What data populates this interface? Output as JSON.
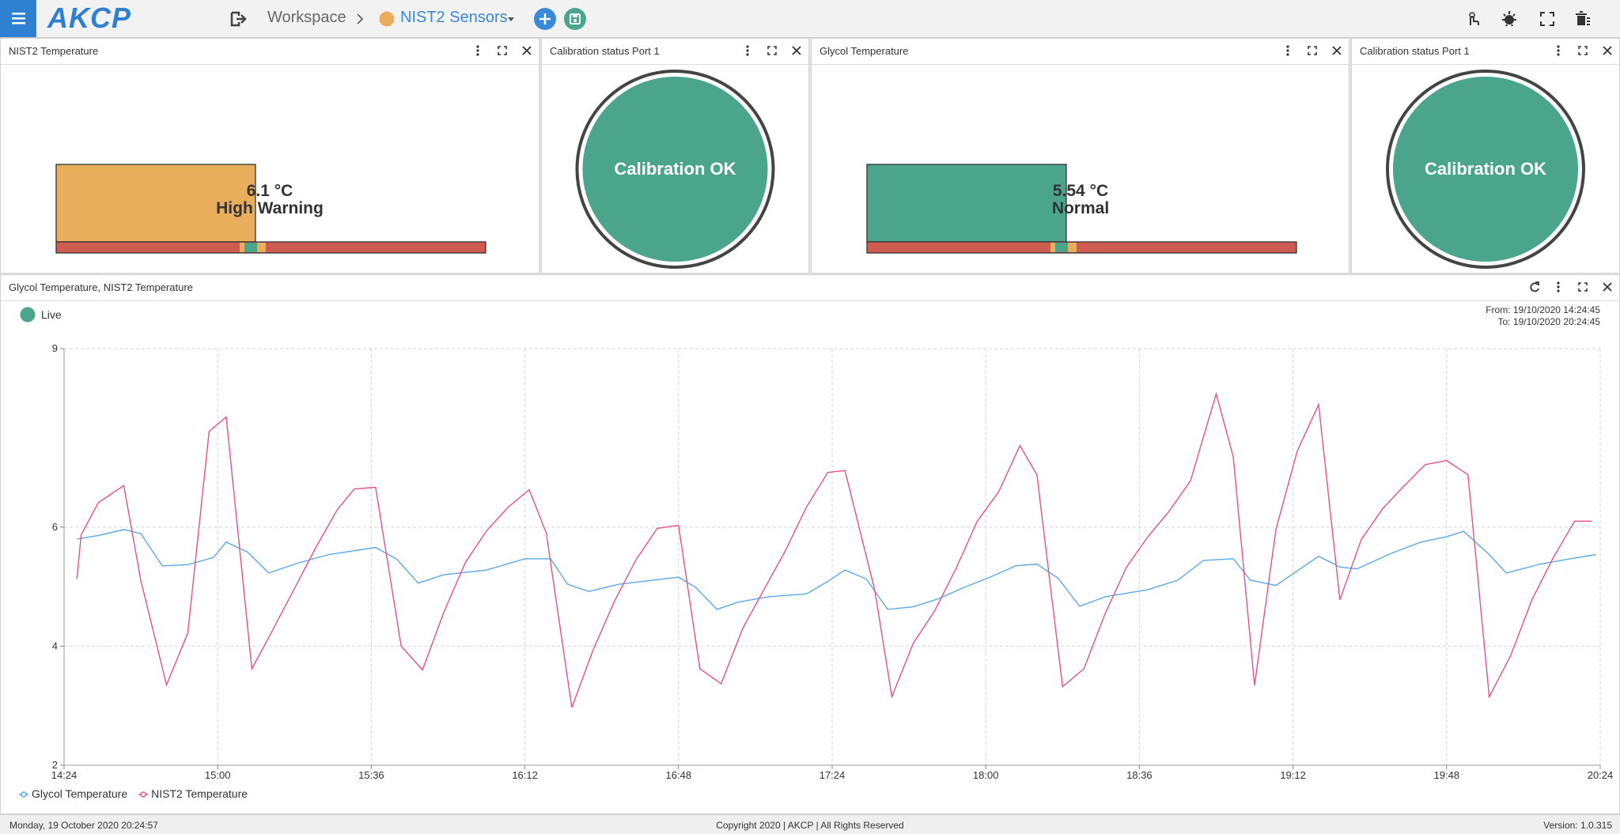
{
  "header": {
    "logo": "AKCP",
    "breadcrumb": [
      "Workspace",
      "NIST2 Sensors"
    ]
  },
  "widgets": [
    {
      "title": "NIST2 Temperature",
      "reading": "6.1 °C",
      "status": "High Warning"
    },
    {
      "title": "Calibration status Port 1",
      "status": "Calibration OK"
    },
    {
      "title": "Glycol Temperature",
      "reading": "5.54 °C",
      "status": "Normal"
    },
    {
      "title": "Calibration status Port 1",
      "status": "Calibration OK"
    }
  ],
  "graph_panel": {
    "title": "Glycol Temperature, NIST2 Temperature",
    "live": "Live",
    "from": "From: 19/10/2020 14:24:45",
    "to": "To: 19/10/2020 20:24:45"
  },
  "chart_data": {
    "type": "line",
    "xlim": [
      "14:24",
      "20:24"
    ],
    "xticks": [
      "14:24",
      "15:00",
      "15:36",
      "16:12",
      "16:48",
      "17:24",
      "18:00",
      "18:36",
      "19:12",
      "19:48",
      "20:24"
    ],
    "ylim": [
      2,
      9
    ],
    "yticks": [
      2,
      4,
      6,
      9
    ],
    "grid": true,
    "series": [
      {
        "name": "Glycol Temperature",
        "color": "#5ba7ea",
        "x": [
          "14:27",
          "14:32",
          "14:38",
          "14:42",
          "14:47",
          "14:53",
          "14:59",
          "15:02",
          "15:07",
          "15:12",
          "15:19",
          "15:26",
          "15:37",
          "15:42",
          "15:47",
          "15:53",
          "16:03",
          "16:12",
          "16:18",
          "16:22",
          "16:27",
          "16:34",
          "16:42",
          "16:48",
          "16:52",
          "16:57",
          "17:02",
          "17:09",
          "17:18",
          "17:23",
          "17:27",
          "17:32",
          "17:37",
          "17:43",
          "17:49",
          "17:55",
          "18:01",
          "18:07",
          "18:12",
          "18:17",
          "18:22",
          "18:28",
          "18:38",
          "18:45",
          "18:51",
          "18:58",
          "19:02",
          "19:08",
          "19:18",
          "19:23",
          "19:27",
          "19:35",
          "19:42",
          "19:48",
          "19:52",
          "19:58",
          "20:02",
          "20:10",
          "20:17",
          "20:23"
        ],
        "values": [
          5.8,
          5.86,
          5.96,
          5.89,
          5.35,
          5.37,
          5.49,
          5.75,
          5.58,
          5.23,
          5.4,
          5.54,
          5.66,
          5.46,
          5.06,
          5.2,
          5.28,
          5.47,
          5.47,
          5.04,
          4.92,
          5.04,
          5.11,
          5.16,
          4.99,
          4.62,
          4.74,
          4.83,
          4.88,
          5.09,
          5.28,
          5.13,
          4.62,
          4.66,
          4.8,
          4.99,
          5.16,
          5.35,
          5.38,
          5.14,
          4.67,
          4.83,
          4.95,
          5.11,
          5.44,
          5.47,
          5.11,
          5.02,
          5.51,
          5.33,
          5.3,
          5.56,
          5.75,
          5.84,
          5.93,
          5.54,
          5.23,
          5.38,
          5.47,
          5.54
        ]
      },
      {
        "name": "NIST2 Temperature",
        "color": "#e8507f",
        "x": [
          "14:27",
          "14:28",
          "14:32",
          "14:38",
          "14:42",
          "14:48",
          "14:53",
          "14:58",
          "15:02",
          "15:08",
          "15:12",
          "15:18",
          "15:23",
          "15:28",
          "15:32",
          "15:37",
          "15:43",
          "15:48",
          "15:53",
          "15:58",
          "16:03",
          "16:08",
          "16:13",
          "16:17",
          "16:23",
          "16:28",
          "16:33",
          "16:38",
          "16:43",
          "16:48",
          "16:53",
          "16:58",
          "17:03",
          "17:08",
          "17:13",
          "17:18",
          "17:23",
          "17:27",
          "17:34",
          "17:38",
          "17:43",
          "17:48",
          "17:53",
          "17:58",
          "18:03",
          "18:08",
          "18:12",
          "18:18",
          "18:23",
          "18:28",
          "18:33",
          "18:38",
          "18:43",
          "18:48",
          "18:54",
          "18:58",
          "19:03",
          "19:08",
          "19:13",
          "19:18",
          "19:23",
          "19:28",
          "19:33",
          "19:38",
          "19:43",
          "19:48",
          "19:53",
          "19:58",
          "20:03",
          "20:08",
          "20:13",
          "20:18",
          "20:22"
        ],
        "values": [
          5.13,
          5.87,
          6.41,
          6.7,
          5.1,
          3.35,
          4.22,
          7.61,
          7.85,
          3.62,
          4.15,
          4.97,
          5.66,
          6.29,
          6.64,
          6.67,
          4.0,
          3.6,
          4.57,
          5.4,
          5.94,
          6.33,
          6.63,
          5.9,
          2.97,
          3.94,
          4.76,
          5.45,
          5.98,
          6.03,
          3.62,
          3.37,
          4.29,
          4.95,
          5.6,
          6.34,
          6.92,
          6.95,
          4.94,
          3.15,
          4.05,
          4.59,
          5.3,
          6.1,
          6.59,
          7.37,
          6.88,
          3.32,
          3.62,
          4.55,
          5.33,
          5.84,
          6.27,
          6.78,
          8.24,
          7.18,
          3.34,
          5.96,
          7.28,
          8.06,
          4.78,
          5.79,
          6.31,
          6.69,
          7.05,
          7.12,
          6.88,
          3.15,
          3.84,
          4.78,
          5.49,
          6.1,
          6.1
        ]
      }
    ]
  },
  "footer": {
    "datetime": "Monday, 19 October 2020 20:24:57",
    "copyright": "Copyright 2020 | AKCP | All Rights Reserved",
    "version": "Version: 1.0.315"
  }
}
